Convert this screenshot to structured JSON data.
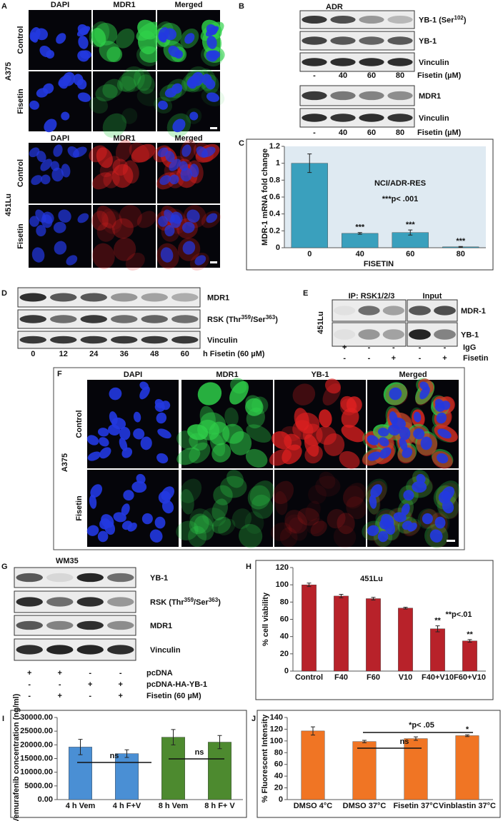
{
  "panel_A": {
    "label": "A",
    "headers_top": [
      "DAPI",
      "MDR1",
      "Merged"
    ],
    "line_top": "A375",
    "rows_top": [
      "Control",
      "Fisetin"
    ],
    "headers_bottom": [
      "DAPI",
      "MDR1",
      "Merged"
    ],
    "line_bottom": "451Lu",
    "rows_bottom": [
      "Control",
      "Fisetin"
    ]
  },
  "panel_B": {
    "label": "B",
    "title": "ADR",
    "rows": [
      [
        "YB-1 (Ser",
        "102",
        ")"
      ],
      [
        "YB-1"
      ],
      [
        "Vinculin"
      ]
    ],
    "lanes": [
      "-",
      "40",
      "60",
      "80"
    ],
    "treatment": "Fisetin (µM)",
    "rows2": [
      [
        "MDR1"
      ],
      [
        "Vinculin"
      ]
    ],
    "lanes2": [
      "-",
      "40",
      "60",
      "80"
    ],
    "treatment2": "Fisetin (µM)"
  },
  "panel_D": {
    "label": "D",
    "rows": [
      [
        "MDR1"
      ],
      [
        "RSK (Thr",
        "359",
        "/Ser",
        "363",
        ")"
      ],
      [
        "Vinculin"
      ]
    ],
    "lanes": [
      "0",
      "12",
      "24",
      "36",
      "48",
      "60"
    ],
    "treatment": "h Fisetin (60 µM)"
  },
  "panel_E": {
    "label": "E",
    "cell_line": "451Lu",
    "headers": [
      "IP: RSK1/2/3",
      "Input"
    ],
    "rows": [
      [
        "MDR-1"
      ],
      [
        "YB-1"
      ]
    ],
    "conditions": [
      {
        "name": "IgG",
        "signs": [
          "+",
          "-",
          "-",
          "-",
          "-"
        ]
      },
      {
        "name": "Fisetin",
        "signs": [
          "-",
          "-",
          "+",
          "-",
          "+"
        ]
      }
    ]
  },
  "panel_F": {
    "label": "F",
    "headers": [
      "DAPI",
      "MDR1",
      "YB-1",
      "Merged"
    ],
    "cell_line": "A375",
    "rows": [
      "Control",
      "Fisetin"
    ]
  },
  "panel_G": {
    "label": "G",
    "title": "WM35",
    "rows": [
      [
        "YB-1"
      ],
      [
        "RSK (Thr",
        "359",
        "/Ser",
        "363",
        ")"
      ],
      [
        "MDR1"
      ],
      [
        "Vinculin"
      ]
    ],
    "conditions": [
      {
        "name": "pcDNA",
        "signs": [
          "+",
          "+",
          "-",
          "-"
        ]
      },
      {
        "name": "pcDNA-HA-YB-1",
        "signs": [
          "-",
          "-",
          "+",
          "+"
        ]
      },
      {
        "name": "Fisetin (60 µM)",
        "signs": [
          "-",
          "+",
          "-",
          "+"
        ]
      }
    ]
  },
  "chart_data": [
    {
      "type": "bar",
      "panel_label": "C",
      "title": "NCI/ADR-RES",
      "annotations": [
        "***p< .001"
      ],
      "y_label": "MDR-1 mRNA fold change",
      "x_label": "FISETIN",
      "categories": [
        "0",
        "40",
        "60",
        "80"
      ],
      "values": [
        1,
        0.17,
        0.18,
        0.01
      ],
      "errors": [
        0.11,
        0.01,
        0.03,
        0.005
      ],
      "bar_labels": [
        null,
        "***",
        "***",
        "***"
      ],
      "color": "#3aa0bd",
      "ylim": [
        0,
        1.2
      ],
      "yticks": [
        0,
        0.2,
        0.4,
        0.6,
        0.8,
        1,
        1.2
      ]
    },
    {
      "type": "bar",
      "panel_label": "H",
      "title": "451Lu",
      "annotations": [
        "**p<.01"
      ],
      "y_label": "% cell viability",
      "categories": [
        "Control",
        "F40",
        "F60",
        "V10",
        "F40+V10",
        "F60+V10"
      ],
      "values": [
        100,
        87,
        84,
        73,
        49,
        35
      ],
      "errors": [
        2,
        2,
        1.5,
        1,
        3.5,
        1.5
      ],
      "bar_labels": [
        null,
        null,
        null,
        null,
        "**",
        "**"
      ],
      "color": "#b8222a",
      "ylim": [
        0,
        120
      ],
      "yticks": [
        0,
        20,
        40,
        60,
        80,
        100,
        120
      ]
    },
    {
      "type": "bar",
      "panel_label": "I",
      "annotations": [
        "ns",
        "ns"
      ],
      "y_label": "Vemurafenib concentration (ng/ml)",
      "categories": [
        "4 h Vem",
        "4 h F+V",
        "8 h Vem",
        "8 h F+ V"
      ],
      "values": [
        19200,
        16800,
        22800,
        21000
      ],
      "errors": [
        2800,
        1400,
        2800,
        2400
      ],
      "colors": [
        "#4a8fd4",
        "#4a8fd4",
        "#4d8a2f",
        "#4d8a2f"
      ],
      "ylim": [
        0,
        30000
      ],
      "yticks": [
        {
          "value": 0,
          "label": "0.00"
        },
        {
          "value": 5000,
          "label": "5000.00"
        },
        {
          "value": 10000,
          "label": "10000.00"
        },
        {
          "value": 15000,
          "label": "15000.00"
        },
        {
          "value": 20000,
          "label": "20000.00"
        },
        {
          "value": 25000,
          "label": "25000.00"
        },
        {
          "value": 30000,
          "label": "30000.00"
        }
      ]
    },
    {
      "type": "bar",
      "panel_label": "J",
      "annotations": [
        "*p< .05",
        "ns"
      ],
      "y_label": "% Fluorescent Intensity",
      "categories": [
        "DMSO 4°C",
        "DMSO 37°C",
        "Fisetin 37°C",
        "Vinblastin 37°C"
      ],
      "values": [
        117,
        99,
        104,
        109
      ],
      "errors": [
        7,
        2,
        3,
        1.5
      ],
      "bar_labels": [
        null,
        null,
        null,
        "*"
      ],
      "color": "#f07524",
      "ylim": [
        0,
        140
      ],
      "yticks": [
        0,
        20,
        40,
        60,
        80,
        100,
        120,
        140
      ]
    }
  ]
}
